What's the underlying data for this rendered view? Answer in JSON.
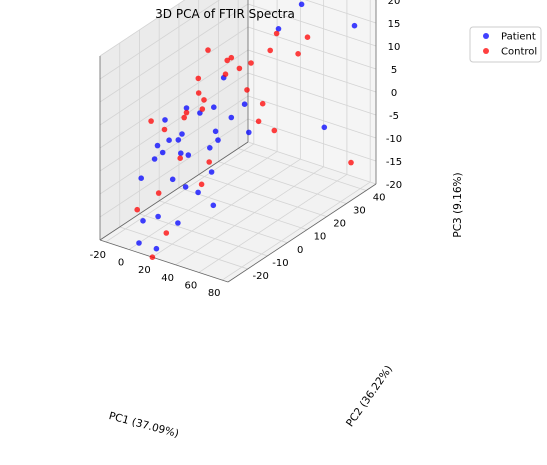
{
  "chart_data": {
    "type": "scatter",
    "projection": "3d",
    "title": "3D PCA of FTIR Spectra",
    "xlabel": "PC1 (37.09%)",
    "ylabel": "PC2 (36.22%)",
    "zlabel": "PC3 (9.16%)",
    "xlim": [
      -25,
      85
    ],
    "ylim": [
      -30,
      45
    ],
    "zlim": [
      -20,
      20
    ],
    "x_ticks": [
      -20,
      0,
      20,
      40,
      60,
      80
    ],
    "y_ticks": [
      -20,
      -10,
      0,
      10,
      20,
      30,
      40
    ],
    "z_ticks": [
      -20,
      -15,
      -10,
      -5,
      0,
      5,
      10,
      15,
      20
    ],
    "grid": true,
    "legend": "top-right outside",
    "series": [
      {
        "name": "Patient",
        "color": "#0000ff",
        "points": [
          [
            75,
            40,
            15
          ],
          [
            66,
            30,
            -5
          ],
          [
            38,
            35,
            18
          ],
          [
            30,
            28,
            14
          ],
          [
            -10,
            5,
            0
          ],
          [
            -5,
            -10,
            -5
          ],
          [
            -8,
            -5,
            -4
          ],
          [
            5,
            -8,
            -2
          ],
          [
            10,
            0,
            2
          ],
          [
            2,
            -5,
            -6
          ],
          [
            -2,
            -2,
            -3
          ],
          [
            15,
            5,
            -3
          ],
          [
            20,
            10,
            -1
          ],
          [
            12,
            -15,
            -8
          ],
          [
            18,
            -12,
            -10
          ],
          [
            25,
            -20,
            -15
          ],
          [
            8,
            -20,
            -15
          ],
          [
            -5,
            -20,
            -17
          ],
          [
            0,
            -25,
            -20
          ],
          [
            15,
            -25,
            -20
          ],
          [
            5,
            15,
            5
          ],
          [
            10,
            5,
            -7
          ],
          [
            -15,
            -15,
            -10
          ],
          [
            20,
            0,
            -10
          ],
          [
            22,
            -8,
            -12
          ],
          [
            30,
            -5,
            -15
          ],
          [
            -12,
            -10,
            -7
          ],
          [
            5,
            10,
            0
          ],
          [
            12,
            8,
            -6
          ],
          [
            35,
            10,
            -3
          ],
          [
            28,
            12,
            2
          ],
          [
            0,
            0,
            -8
          ],
          [
            -20,
            0,
            -2
          ],
          [
            -18,
            -5,
            -6
          ]
        ]
      },
      {
        "name": "Control",
        "color": "#ff0000",
        "points": [
          [
            72,
            40,
            -15
          ],
          [
            38,
            38,
            10
          ],
          [
            35,
            35,
            7
          ],
          [
            25,
            30,
            12
          ],
          [
            0,
            10,
            12
          ],
          [
            10,
            20,
            6
          ],
          [
            5,
            5,
            3
          ],
          [
            -8,
            10,
            2
          ],
          [
            -10,
            5,
            -1
          ],
          [
            15,
            10,
            8
          ],
          [
            20,
            20,
            8
          ],
          [
            12,
            0,
            3
          ],
          [
            25,
            15,
            4
          ],
          [
            30,
            20,
            0
          ],
          [
            35,
            15,
            -2
          ],
          [
            10,
            -10,
            -5
          ],
          [
            18,
            0,
            -8
          ],
          [
            25,
            -8,
            -10
          ],
          [
            -10,
            -20,
            -15
          ],
          [
            15,
            -20,
            -18
          ],
          [
            20,
            -30,
            -20
          ],
          [
            5,
            -5,
            2
          ],
          [
            -5,
            8,
            6
          ],
          [
            20,
            10,
            12
          ],
          [
            28,
            25,
            10
          ],
          [
            -12,
            -5,
            -2
          ],
          [
            40,
            20,
            -5
          ],
          [
            8,
            15,
            9
          ],
          [
            -15,
            -10,
            1
          ],
          [
            0,
            -15,
            -12
          ]
        ]
      }
    ]
  }
}
